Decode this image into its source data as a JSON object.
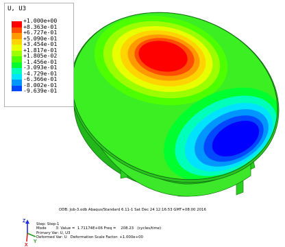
{
  "legend": {
    "title": "U, U3",
    "levels": [
      {
        "label": "+1.000e+00",
        "color": "#ff0000"
      },
      {
        "label": "+8.363e-01",
        "color": "#ff4e00"
      },
      {
        "label": "+6.727e-01",
        "color": "#ff9b00"
      },
      {
        "label": "+5.090e-01",
        "color": "#ffd400"
      },
      {
        "label": "+3.454e-01",
        "color": "#e8ff00"
      },
      {
        "label": "+1.817e-01",
        "color": "#9cff00"
      },
      {
        "label": "+1.805e-02",
        "color": "#4eff00"
      },
      {
        "label": "-1.456e-01",
        "color": "#00ff2e"
      },
      {
        "label": "-3.093e-01",
        "color": "#00ffb9"
      },
      {
        "label": "-4.729e-01",
        "color": "#00e3ff"
      },
      {
        "label": "-6.366e-01",
        "color": "#0096ff"
      },
      {
        "label": "-8.002e-01",
        "color": "#0048ff"
      },
      {
        "label": "-9.639e-01",
        "color": "#0000ff"
      }
    ]
  },
  "model": {
    "name": "deformed-dome",
    "mesh_color": "#0f6b0f",
    "base_color": "#3cef22",
    "frame_color": "#24c21e"
  },
  "info_line": "ODB: Job-3.odb    Abaqus/Standard 6.11-1    Sat Dec 24 12:16:53 GMT+08:00 2016",
  "step_info": {
    "step": "Step: Step-1",
    "mode": "Mode        3: Value =  1.71174E+06 Freq =    208.23   (cycles/time)",
    "primary_var": "Primary Var: U, U3",
    "deformed_var": "Deformed Var: U   Deformation Scale Factor: +1.000e+00"
  },
  "triad": {
    "z_label": "Z",
    "x_label": "X",
    "y_label": "Y",
    "z_color": "#1c2bd9",
    "x_color": "#d61c1c",
    "y_color": "#1f9e1f"
  }
}
